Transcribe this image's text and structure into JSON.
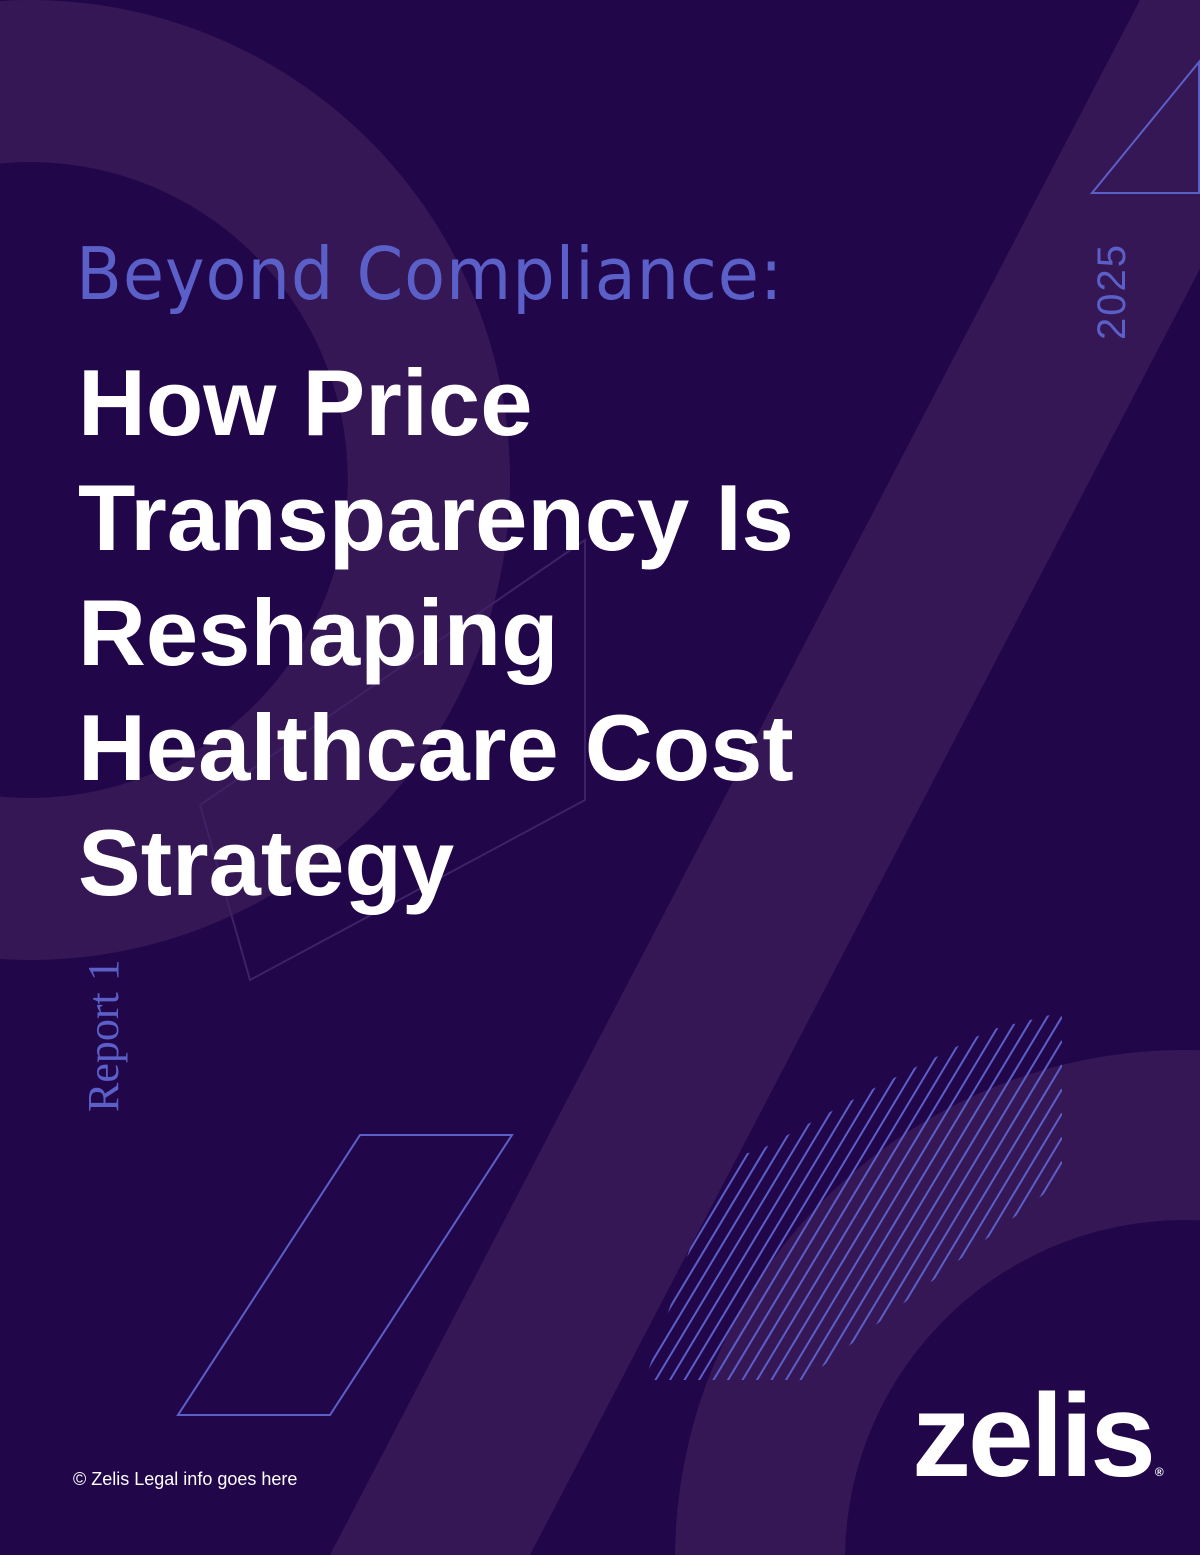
{
  "cover": {
    "subtitle": "Beyond Compliance:",
    "title_lines": [
      "How Price",
      "Transparency Is",
      "Reshaping",
      "Healthcare Cost",
      "Strategy"
    ],
    "year": "2025",
    "report_label": "Report 1",
    "legal": "© Zelis Legal info goes here",
    "logo": "zelis",
    "logo_mark": "®"
  },
  "colors": {
    "background": "#22064a",
    "shape": "#351756",
    "accent": "#5b60c8",
    "text": "#ffffff"
  }
}
